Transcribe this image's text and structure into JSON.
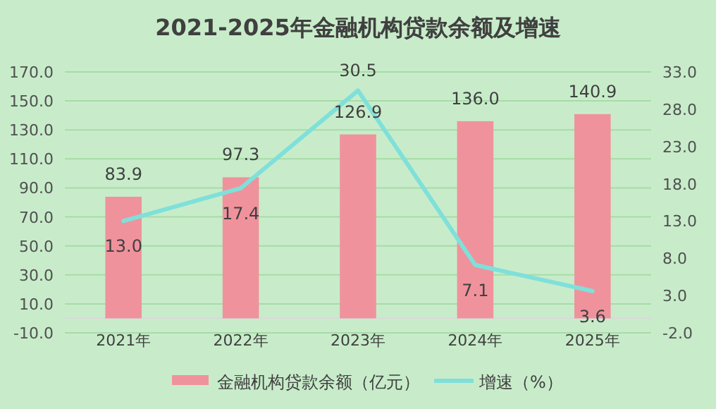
{
  "chart_data": {
    "type": "bar",
    "title": "2021-2025年金融机构贷款余额及增速",
    "categories": [
      "2021年",
      "2022年",
      "2023年",
      "2024年",
      "2025年"
    ],
    "series": [
      {
        "name": "金融机构贷款余额（亿元）",
        "color": "#f0929c",
        "values": [
          83.9,
          97.3,
          126.9,
          136.0,
          140.9
        ],
        "value_labels": [
          "83.9",
          "97.3",
          "126.9",
          "136.0",
          "140.9"
        ]
      },
      {
        "name": "增速（%）",
        "type": "line",
        "axis": "y2",
        "color": "#7fe0da",
        "values": [
          13.0,
          17.4,
          30.5,
          7.1,
          3.6
        ],
        "value_labels": [
          "13.0",
          "17.4",
          "30.5",
          "7.1",
          "3.6"
        ]
      }
    ],
    "ylim": [
      -10,
      170
    ],
    "yticks": [
      {
        "value": -10,
        "label": "-10.0"
      },
      {
        "value": 10,
        "label": "10.0"
      },
      {
        "value": 30,
        "label": "30.0"
      },
      {
        "value": 50,
        "label": "50.0"
      },
      {
        "value": 70,
        "label": "70.0"
      },
      {
        "value": 90,
        "label": "90.0"
      },
      {
        "value": 110,
        "label": "110.0"
      },
      {
        "value": 130,
        "label": "130.0"
      },
      {
        "value": 150,
        "label": "150.0"
      },
      {
        "value": 170,
        "label": "170.0"
      }
    ],
    "y2lim": [
      -2,
      33
    ],
    "y2ticks": [
      {
        "value": -2,
        "label": "-2.0"
      },
      {
        "value": 3,
        "label": "3.0"
      },
      {
        "value": 8,
        "label": "8.0"
      },
      {
        "value": 13,
        "label": "13.0"
      },
      {
        "value": 18,
        "label": "18.0"
      },
      {
        "value": 23,
        "label": "23.0"
      },
      {
        "value": 28,
        "label": "28.0"
      },
      {
        "value": 33,
        "label": "33.0"
      }
    ],
    "grid": "y",
    "legend": "bottom",
    "marker": "none"
  }
}
